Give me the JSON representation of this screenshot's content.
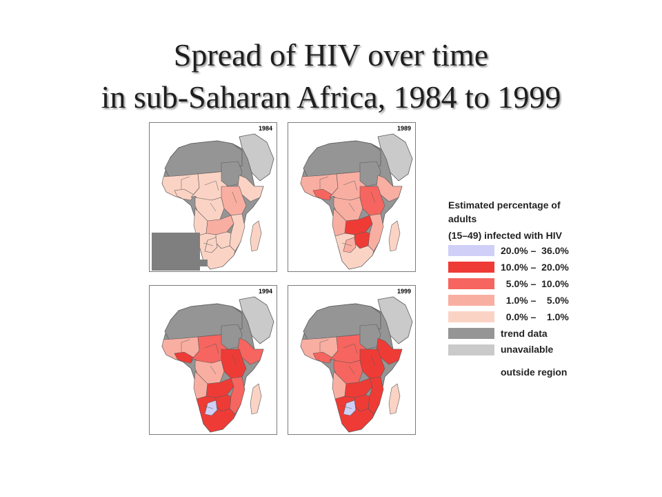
{
  "title": {
    "line1": "Spread of HIV over time",
    "line2": "in sub-Saharan Africa, 1984 to 1999"
  },
  "maps": [
    {
      "year": "1984"
    },
    {
      "year": "1989"
    },
    {
      "year": "1994"
    },
    {
      "year": "1999"
    }
  ],
  "legend": {
    "title_line1": "Estimated percentage of",
    "title_line2": "adults",
    "title_line3": "(15–49) infected with HIV",
    "items": [
      {
        "label": "20.0% –  36.0%",
        "color": "#cfcff7"
      },
      {
        "label": "10.0% –  20.0%",
        "color": "#ef3b36"
      },
      {
        "label": "  5.0% –  10.0%",
        "color": "#f6655f"
      },
      {
        "label": "  1.0% –    5.0%",
        "color": "#f9aea2"
      },
      {
        "label": "  0.0% –    1.0%",
        "color": "#fbd3c4"
      },
      {
        "label": "trend data",
        "color": "#959595"
      },
      {
        "label": "unavailable",
        "color": "#cacaca"
      },
      {
        "label": "outside region",
        "color": null
      }
    ]
  },
  "colors": {
    "trend_unavailable": "#959595",
    "outside_region": "#cacaca",
    "ocean": "#ffffff",
    "border": "#5a5a5a"
  }
}
